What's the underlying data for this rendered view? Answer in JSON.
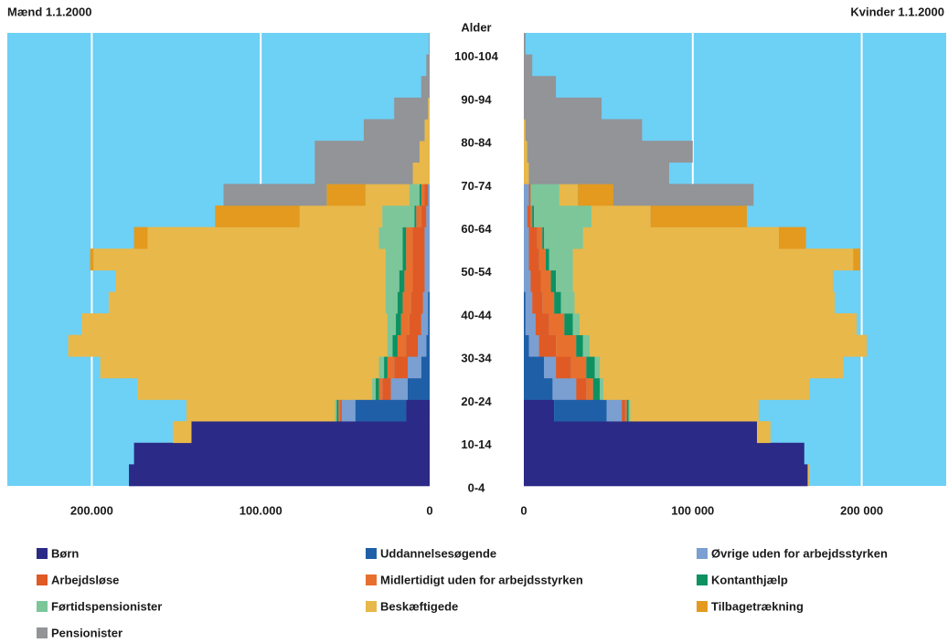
{
  "chart_data": {
    "type": "pyramid",
    "y_title": "Alder",
    "categories": [
      "0-4",
      null,
      "10-14",
      null,
      "20-24",
      null,
      "30-34",
      null,
      "40-44",
      null,
      "50-54",
      null,
      "60-64",
      null,
      "70-74",
      null,
      "80-84",
      null,
      "90-94",
      null,
      "100-104"
    ],
    "background": "#6dd0f5",
    "grid": true,
    "series": [
      {
        "name": "Børn",
        "color": "#2b2a86"
      },
      {
        "name": "Uddannelsesøgende",
        "color": "#1f5fa8"
      },
      {
        "name": "Øvrige uden for arbejdsstyrken",
        "color": "#7b9fd0"
      },
      {
        "name": "Arbejdsløse",
        "color": "#e05a26"
      },
      {
        "name": "Midlertidigt uden for arbejdsstyrken",
        "color": "#e8702e"
      },
      {
        "name": "Kontanthjælp",
        "color": "#0e9160"
      },
      {
        "name": "Førtidspensionister",
        "color": "#7cc69a"
      },
      {
        "name": "Beskæftigede",
        "color": "#e8b84a"
      },
      {
        "name": "Tilbagetrækning",
        "color": "#e39a1f"
      },
      {
        "name": "Pensionister",
        "color": "#929497"
      }
    ],
    "panels": [
      {
        "title": "Mænd 1.1.2000",
        "reversed": true,
        "xlim": [
          0,
          250000
        ],
        "xticks": [
          {
            "value": 200000,
            "label": "200.000"
          },
          {
            "value": 100000,
            "label": "100.000"
          },
          0
        ],
        "values": [
          [
            178000,
            175000,
            141000,
            14000,
            0,
            0,
            0,
            0,
            0,
            0,
            0,
            0,
            0,
            0,
            0,
            0,
            0,
            0,
            0,
            0,
            0
          ],
          [
            0,
            0,
            0,
            30000,
            13000,
            5000,
            2000,
            1000,
            1000,
            0,
            0,
            0,
            0,
            0,
            0,
            0,
            0,
            0,
            0,
            0,
            0
          ],
          [
            0,
            0,
            0,
            8000,
            10000,
            8000,
            5000,
            4000,
            3000,
            3000,
            3000,
            3000,
            2000,
            1000,
            0,
            0,
            0,
            0,
            0,
            0,
            0
          ],
          [
            0,
            0,
            0,
            1000,
            5000,
            8000,
            7000,
            7000,
            7000,
            7000,
            7000,
            7000,
            3000,
            2000,
            0,
            0,
            0,
            0,
            0,
            0,
            0
          ],
          [
            0,
            0,
            0,
            1000,
            2000,
            4000,
            5000,
            5000,
            5000,
            5000,
            4000,
            4000,
            3000,
            2000,
            0,
            0,
            0,
            0,
            0,
            0,
            0
          ],
          [
            0,
            0,
            0,
            1000,
            2000,
            2000,
            3000,
            3000,
            3000,
            3000,
            2000,
            2000,
            1000,
            1000,
            0,
            0,
            0,
            0,
            0,
            0,
            0
          ],
          [
            0,
            0,
            0,
            1000,
            2000,
            3000,
            3000,
            5000,
            7000,
            8000,
            10000,
            14000,
            19000,
            6000,
            0,
            0,
            0,
            0,
            0,
            0,
            0
          ],
          [
            0,
            0,
            11000,
            88000,
            139000,
            165000,
            189000,
            181000,
            164000,
            160000,
            173000,
            137000,
            49000,
            26000,
            10000,
            6000,
            3000,
            1000,
            0,
            0,
            0
          ],
          [
            0,
            0,
            0,
            0,
            0,
            0,
            0,
            0,
            0,
            0,
            2000,
            8000,
            50000,
            23000,
            0,
            0,
            0,
            0,
            0,
            0,
            0
          ],
          [
            0,
            0,
            0,
            0,
            0,
            0,
            0,
            0,
            0,
            0,
            0,
            0,
            0,
            61000,
            58000,
            62000,
            36000,
            20000,
            5000,
            2000,
            500
          ]
        ]
      },
      {
        "title": "Kvinder 1.1.2000",
        "reversed": false,
        "xlim": [
          0,
          250000
        ],
        "xticks": [
          0,
          {
            "value": 100000,
            "label": "100 000"
          },
          {
            "value": 200000,
            "label": "200 000"
          }
        ],
        "values": [
          [
            168000,
            166000,
            138000,
            18000,
            0,
            0,
            0,
            0,
            0,
            0,
            0,
            0,
            0,
            0,
            0,
            0,
            0,
            0,
            0,
            0,
            0
          ],
          [
            0,
            0,
            0,
            31000,
            17000,
            12000,
            3000,
            1000,
            1000,
            0,
            0,
            0,
            0,
            0,
            0,
            0,
            0,
            0,
            0,
            0,
            0
          ],
          [
            0,
            0,
            0,
            9000,
            14000,
            7000,
            6000,
            6000,
            4000,
            4000,
            3000,
            3000,
            2000,
            3000,
            0,
            0,
            0,
            0,
            0,
            0,
            0
          ],
          [
            0,
            0,
            0,
            2000,
            6000,
            9000,
            10000,
            8000,
            6000,
            6000,
            6000,
            5000,
            2000,
            1000,
            0,
            0,
            0,
            0,
            0,
            0,
            0
          ],
          [
            0,
            0,
            0,
            1000,
            4000,
            9000,
            12000,
            9000,
            7000,
            6000,
            4000,
            3000,
            1000,
            0,
            0,
            0,
            0,
            0,
            0,
            0,
            0
          ],
          [
            0,
            0,
            0,
            1000,
            4000,
            5000,
            4000,
            5000,
            4000,
            3000,
            2000,
            1000,
            1000,
            0,
            0,
            0,
            0,
            0,
            0,
            0,
            0
          ],
          [
            0,
            0,
            0,
            1000,
            2000,
            3000,
            4000,
            4000,
            8000,
            10000,
            14000,
            23000,
            34000,
            17000,
            0,
            0,
            0,
            0,
            0,
            0,
            0
          ],
          [
            1000,
            0,
            8000,
            76000,
            122000,
            144000,
            164000,
            164000,
            154000,
            154000,
            166000,
            116000,
            35000,
            11000,
            3000,
            2000,
            1000,
            0,
            0,
            0,
            0
          ],
          [
            0,
            0,
            0,
            0,
            0,
            0,
            0,
            0,
            0,
            0,
            4000,
            16000,
            57000,
            21000,
            0,
            0,
            0,
            0,
            0,
            0,
            0
          ],
          [
            0,
            0,
            0,
            0,
            0,
            0,
            0,
            0,
            0,
            0,
            0,
            0,
            0,
            83000,
            83000,
            98000,
            69000,
            46000,
            19000,
            5000,
            1000
          ]
        ]
      }
    ]
  }
}
